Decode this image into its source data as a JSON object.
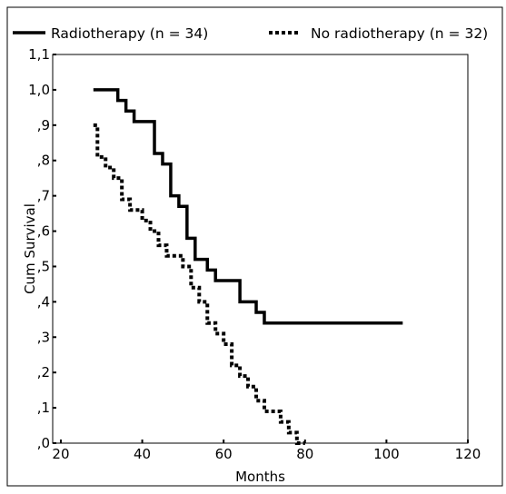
{
  "chart_data": {
    "type": "line",
    "xlabel": "Months",
    "ylabel": "Cum Survival",
    "xlim": [
      18,
      120
    ],
    "ylim": [
      0.0,
      1.1
    ],
    "grid": false,
    "legend_position": "top",
    "xticks": [
      20,
      40,
      60,
      80,
      100,
      120
    ],
    "xtick_labels": [
      "20",
      "40",
      "60",
      "80",
      "100",
      "120"
    ],
    "yticks": [
      0.0,
      0.1,
      0.2,
      0.3,
      0.4,
      0.5,
      0.6,
      0.7,
      0.8,
      0.9,
      1.0,
      1.1
    ],
    "ytick_labels": [
      ",0",
      ",1",
      ",2",
      ",3",
      ",4",
      ",5",
      ",6",
      ",7",
      ",8",
      ",9",
      "1,0",
      "1,1"
    ],
    "series": [
      {
        "name": "Radiotherapy (n = 34)",
        "style": "solid",
        "x": [
          28,
          34,
          36,
          38,
          43,
          45,
          47,
          49,
          51,
          53,
          56,
          58,
          60,
          64,
          68,
          70,
          104
        ],
        "y": [
          1.0,
          0.97,
          0.94,
          0.91,
          0.82,
          0.79,
          0.7,
          0.67,
          0.58,
          0.52,
          0.49,
          0.46,
          0.46,
          0.4,
          0.37,
          0.34,
          0.34
        ]
      },
      {
        "name": "No radiotherapy (n = 32)",
        "style": "dotted",
        "x": [
          28,
          29,
          31,
          33,
          35,
          37,
          40,
          42,
          44,
          46,
          48,
          50,
          52,
          54,
          56,
          58,
          60,
          62,
          64,
          66,
          68,
          70,
          72,
          74,
          76,
          78,
          80
        ],
        "y": [
          0.9,
          0.81,
          0.78,
          0.75,
          0.69,
          0.66,
          0.63,
          0.6,
          0.56,
          0.53,
          0.53,
          0.5,
          0.44,
          0.4,
          0.34,
          0.31,
          0.28,
          0.22,
          0.19,
          0.16,
          0.12,
          0.09,
          0.09,
          0.06,
          0.03,
          0.0,
          0.0
        ]
      }
    ]
  }
}
